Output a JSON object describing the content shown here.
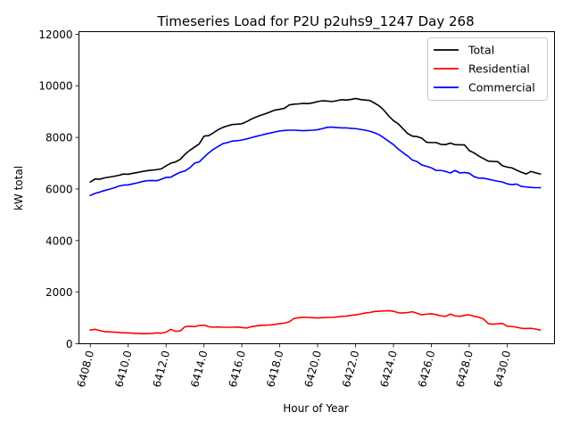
{
  "chart_data": {
    "type": "line",
    "title": "Timeseries Load for P2U p2uhs9_1247  Day 268",
    "xlabel": "Hour of Year",
    "ylabel": "kW total",
    "xlim": [
      6407.4,
      6432.5
    ],
    "ylim": [
      0,
      12100
    ],
    "xticks": [
      6408,
      6410,
      6412,
      6414,
      6416,
      6418,
      6420,
      6422,
      6424,
      6426,
      6428,
      6430
    ],
    "xtick_labels": [
      "6408.0",
      "6410.0",
      "6412.0",
      "6414.0",
      "6416.0",
      "6418.0",
      "6420.0",
      "6422.0",
      "6424.0",
      "6426.0",
      "6428.0",
      "6430.0"
    ],
    "yticks": [
      0,
      2000,
      4000,
      6000,
      8000,
      10000,
      12000
    ],
    "ytick_labels": [
      "0",
      "2000",
      "4000",
      "6000",
      "8000",
      "10000",
      "12000"
    ],
    "legend_position": "top-right",
    "x": [
      6408.0,
      6408.25,
      6408.5,
      6408.75,
      6409.0,
      6409.25,
      6409.5,
      6409.75,
      6410.0,
      6410.25,
      6410.5,
      6410.75,
      6411.0,
      6411.25,
      6411.5,
      6411.75,
      6412.0,
      6412.25,
      6412.5,
      6412.75,
      6413.0,
      6413.25,
      6413.5,
      6413.75,
      6414.0,
      6414.25,
      6414.5,
      6414.75,
      6415.0,
      6415.25,
      6415.5,
      6415.75,
      6416.0,
      6416.25,
      6416.5,
      6416.75,
      6417.0,
      6417.25,
      6417.5,
      6417.75,
      6418.0,
      6418.25,
      6418.5,
      6418.75,
      6419.0,
      6419.25,
      6419.5,
      6419.75,
      6420.0,
      6420.25,
      6420.5,
      6420.75,
      6421.0,
      6421.25,
      6421.5,
      6421.75,
      6422.0,
      6422.25,
      6422.5,
      6422.75,
      6423.0,
      6423.25,
      6423.5,
      6423.75,
      6424.0,
      6424.25,
      6424.5,
      6424.75,
      6425.0,
      6425.25,
      6425.5,
      6425.75,
      6426.0,
      6426.25,
      6426.5,
      6426.75,
      6427.0,
      6427.25,
      6427.5,
      6427.75,
      6428.0,
      6428.25,
      6428.5,
      6428.75,
      6429.0,
      6429.25,
      6429.5,
      6429.75,
      6430.0,
      6430.25,
      6430.5,
      6430.75,
      6431.0,
      6431.25,
      6431.5,
      6431.75
    ],
    "series": [
      {
        "name": "Total",
        "color": "#000000",
        "values": [
          6270,
          6390,
          6380,
          6430,
          6460,
          6490,
          6530,
          6580,
          6570,
          6610,
          6640,
          6680,
          6710,
          6730,
          6750,
          6780,
          6900,
          7000,
          7050,
          7150,
          7350,
          7500,
          7620,
          7750,
          8050,
          8070,
          8180,
          8300,
          8390,
          8450,
          8500,
          8510,
          8530,
          8610,
          8710,
          8790,
          8860,
          8920,
          8990,
          9060,
          9090,
          9130,
          9260,
          9290,
          9300,
          9320,
          9310,
          9340,
          9390,
          9420,
          9410,
          9390,
          9420,
          9460,
          9450,
          9470,
          9510,
          9470,
          9450,
          9430,
          9330,
          9220,
          9050,
          8830,
          8650,
          8530,
          8340,
          8150,
          8050,
          8030,
          7970,
          7810,
          7800,
          7800,
          7730,
          7720,
          7780,
          7720,
          7710,
          7710,
          7490,
          7400,
          7280,
          7180,
          7080,
          7070,
          7060,
          6900,
          6850,
          6820,
          6730,
          6650,
          6580,
          6680,
          6630,
          6580
        ]
      },
      {
        "name": "Residential",
        "color": "#ff0000",
        "values": [
          530,
          560,
          510,
          470,
          460,
          450,
          440,
          420,
          420,
          410,
          400,
          390,
          390,
          400,
          420,
          410,
          450,
          560,
          480,
          500,
          660,
          680,
          660,
          710,
          720,
          660,
          640,
          650,
          640,
          640,
          640,
          650,
          630,
          610,
          660,
          690,
          710,
          720,
          730,
          750,
          780,
          800,
          850,
          980,
          1010,
          1030,
          1020,
          1010,
          1000,
          1010,
          1020,
          1020,
          1040,
          1060,
          1070,
          1100,
          1120,
          1150,
          1190,
          1210,
          1250,
          1260,
          1270,
          1280,
          1260,
          1200,
          1190,
          1210,
          1240,
          1180,
          1120,
          1150,
          1160,
          1130,
          1080,
          1060,
          1150,
          1080,
          1060,
          1100,
          1120,
          1070,
          1030,
          960,
          780,
          760,
          770,
          790,
          680,
          670,
          640,
          600,
          590,
          600,
          570,
          530
        ]
      },
      {
        "name": "Commercial",
        "color": "#0000ff",
        "values": [
          5750,
          5830,
          5880,
          5940,
          5990,
          6040,
          6110,
          6150,
          6160,
          6200,
          6240,
          6290,
          6320,
          6330,
          6320,
          6380,
          6450,
          6460,
          6560,
          6650,
          6700,
          6820,
          7000,
          7050,
          7230,
          7400,
          7540,
          7650,
          7760,
          7800,
          7860,
          7870,
          7900,
          7940,
          7990,
          8040,
          8080,
          8130,
          8170,
          8210,
          8250,
          8270,
          8280,
          8280,
          8270,
          8260,
          8270,
          8280,
          8300,
          8340,
          8390,
          8400,
          8380,
          8370,
          8370,
          8350,
          8340,
          8310,
          8280,
          8240,
          8180,
          8100,
          7980,
          7850,
          7720,
          7550,
          7410,
          7280,
          7120,
          7060,
          6930,
          6880,
          6820,
          6720,
          6720,
          6680,
          6620,
          6720,
          6620,
          6640,
          6610,
          6480,
          6420,
          6420,
          6380,
          6340,
          6300,
          6270,
          6200,
          6170,
          6190,
          6100,
          6080,
          6060,
          6050,
          6050
        ]
      }
    ]
  }
}
